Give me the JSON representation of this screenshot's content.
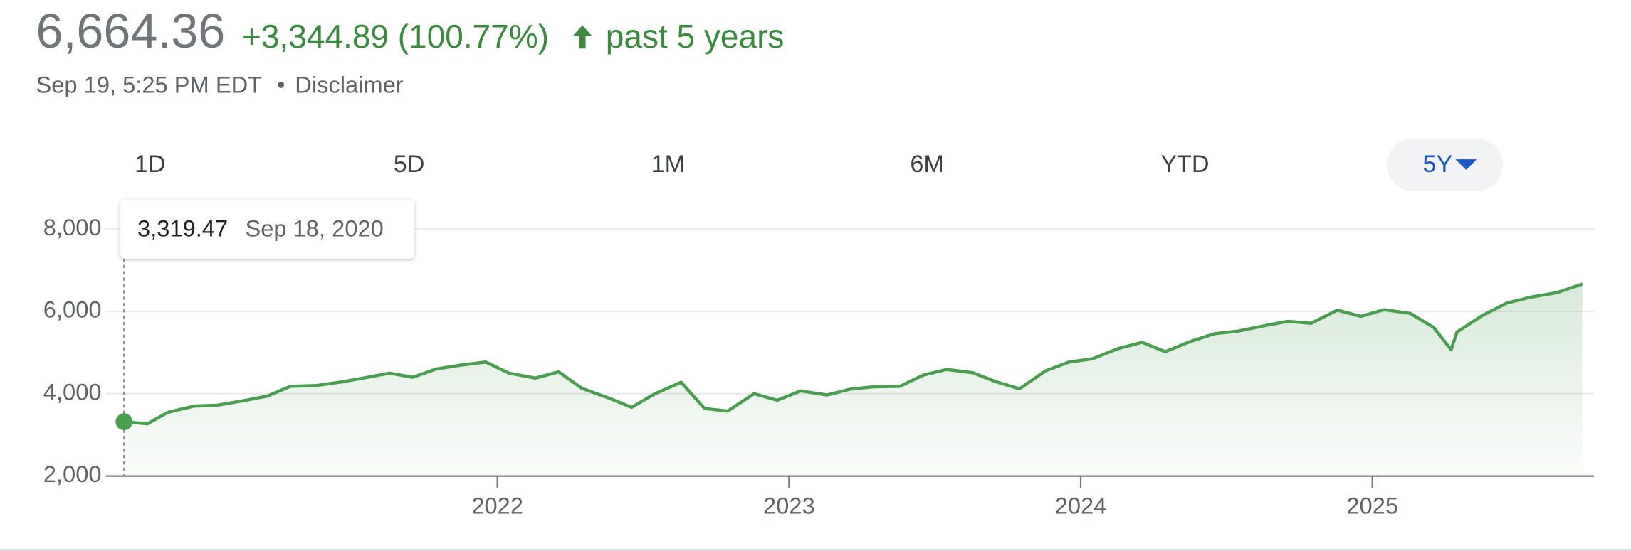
{
  "header": {
    "price": "6,664.36",
    "change": "+3,344.89 (100.77%)",
    "period": "past 5 years",
    "timestamp": "Sep 19, 5:25 PM EDT",
    "separator": "•",
    "disclaimer": "Disclaimer"
  },
  "tabs": [
    "1D",
    "5D",
    "1M",
    "6M",
    "YTD",
    "5Y"
  ],
  "chart_data": {
    "type": "line",
    "color": "#4a9e50",
    "tooltip": {
      "label": "3,319.47",
      "date": "Sep 18, 2020"
    },
    "x": [
      2020.72,
      2020.8,
      2020.87,
      2020.96,
      2021.04,
      2021.13,
      2021.21,
      2021.29,
      2021.38,
      2021.46,
      2021.54,
      2021.63,
      2021.71,
      2021.79,
      2021.88,
      2021.96,
      2022.04,
      2022.13,
      2022.21,
      2022.29,
      2022.38,
      2022.46,
      2022.54,
      2022.63,
      2022.71,
      2022.79,
      2022.88,
      2022.96,
      2023.04,
      2023.13,
      2023.21,
      2023.29,
      2023.38,
      2023.46,
      2023.54,
      2023.63,
      2023.71,
      2023.79,
      2023.88,
      2023.96,
      2024.04,
      2024.13,
      2024.21,
      2024.29,
      2024.38,
      2024.46,
      2024.54,
      2024.63,
      2024.71,
      2024.79,
      2024.88,
      2024.96,
      2025.04,
      2025.13,
      2025.21,
      2025.27,
      2025.29,
      2025.38,
      2025.46,
      2025.54,
      2025.63,
      2025.72
    ],
    "values": [
      3319.47,
      3270,
      3550,
      3700,
      3720,
      3830,
      3940,
      4180,
      4200,
      4280,
      4380,
      4500,
      4400,
      4600,
      4700,
      4770,
      4500,
      4380,
      4530,
      4130,
      3900,
      3670,
      4000,
      4280,
      3640,
      3580,
      4000,
      3840,
      4070,
      3970,
      4110,
      4170,
      4180,
      4450,
      4590,
      4510,
      4290,
      4120,
      4560,
      4770,
      4850,
      5100,
      5250,
      5020,
      5280,
      5460,
      5520,
      5650,
      5760,
      5710,
      6030,
      5880,
      6040,
      5950,
      5610,
      5070,
      5500,
      5910,
      6200,
      6340,
      6450,
      6664.36
    ],
    "xlim": [
      2020.715,
      2025.72
    ],
    "xticks": [
      2022,
      2023,
      2024,
      2025
    ],
    "ylim": [
      2000,
      8000
    ],
    "yticks": [
      {
        "value": 2000,
        "label": "2,000"
      },
      {
        "value": 4000,
        "label": "4,000"
      },
      {
        "value": 6000,
        "label": "6,000"
      },
      {
        "value": 8000,
        "label": "8,000"
      }
    ],
    "grid": true
  }
}
